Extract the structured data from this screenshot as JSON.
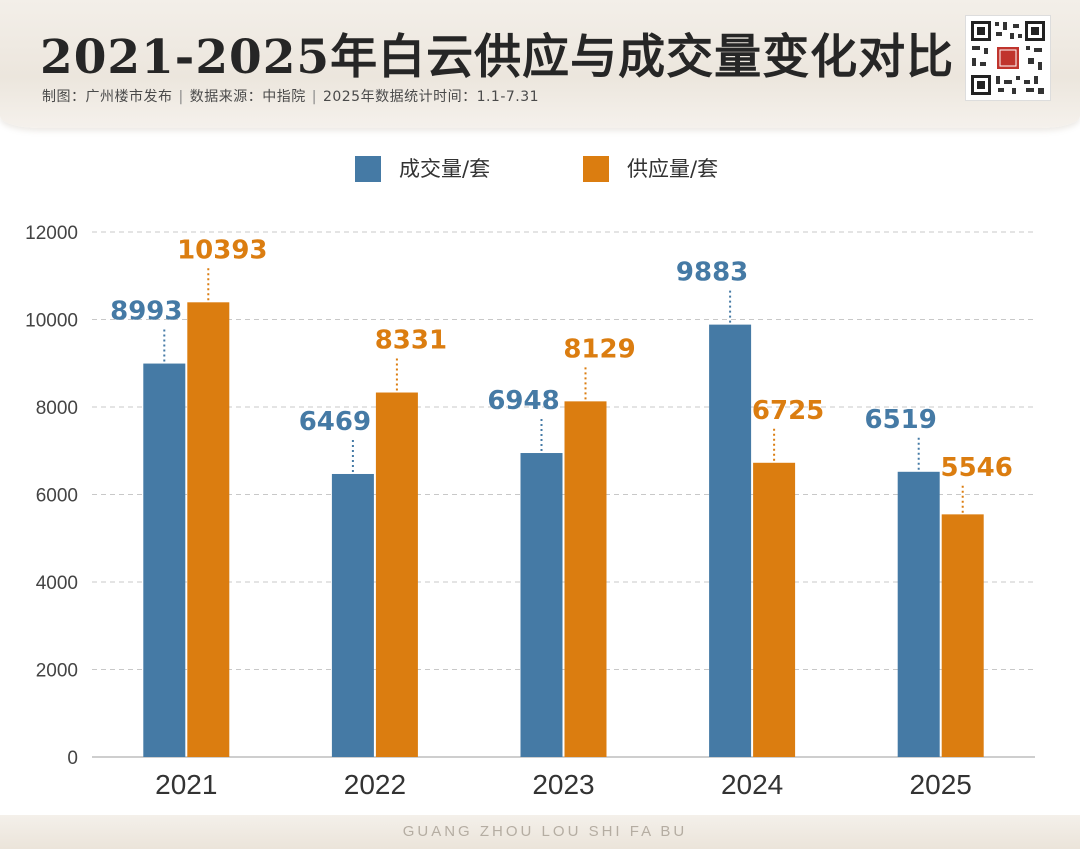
{
  "header": {
    "title": "2021-2025年白云供应与成交量变化对比",
    "subtitle_maker": "制图：广州楼市发布",
    "subtitle_source": "数据来源：中指院",
    "subtitle_period": "2025年数据统计时间：1.1-7.31",
    "separator": "|"
  },
  "footer": {
    "text": "GUANG ZHOU LOU SHI FA BU"
  },
  "chart_data": {
    "type": "bar",
    "title": "",
    "xlabel": "",
    "ylabel": "",
    "categories": [
      "2021",
      "2022",
      "2023",
      "2024",
      "2025"
    ],
    "series": [
      {
        "name": "成交量/套",
        "color": "#457aa5",
        "values": [
          8993,
          6469,
          6948,
          9883,
          6519
        ]
      },
      {
        "name": "供应量/套",
        "color": "#db7d10",
        "values": [
          10393,
          8331,
          8129,
          6725,
          5546
        ]
      }
    ],
    "ylim": [
      0,
      12000
    ],
    "yticks": [
      0,
      2000,
      4000,
      6000,
      8000,
      10000,
      12000
    ],
    "grid": true,
    "legend_position": "top-center"
  }
}
